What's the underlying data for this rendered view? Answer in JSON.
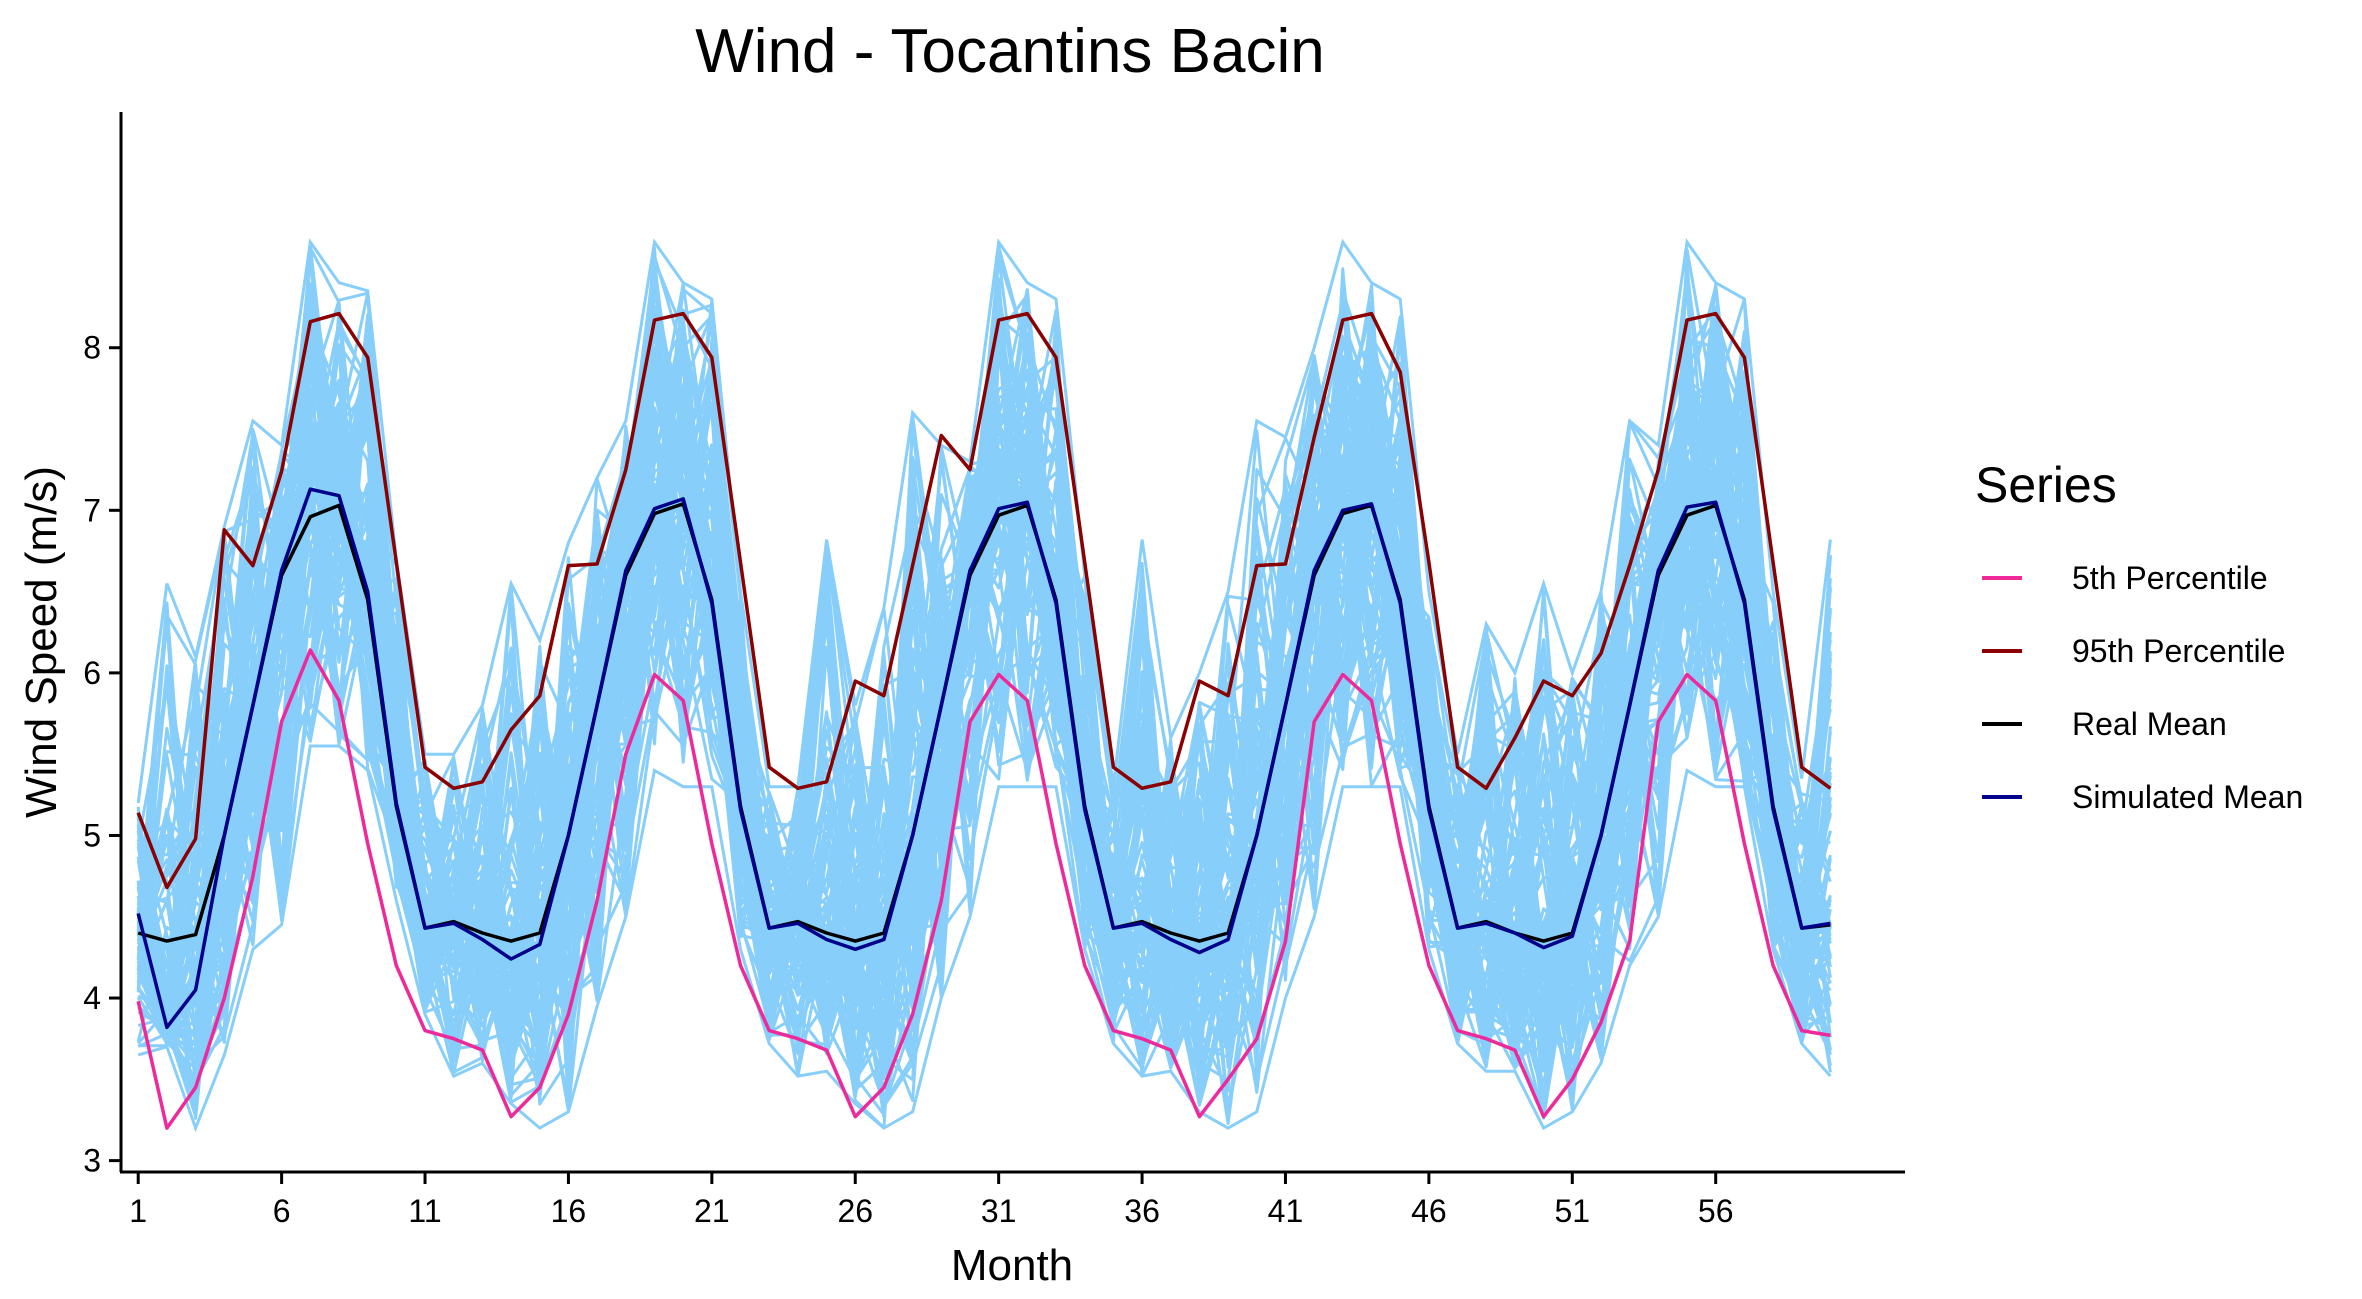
{
  "chart_data": {
    "type": "line",
    "title": "Wind - Tocantins Bacin",
    "xlabel": "Month",
    "ylabel": "Wind Speed (m/s)",
    "xlim": [
      0.4,
      62.6
    ],
    "ylim": [
      2.93,
      9.45
    ],
    "x_ticks": [
      1,
      6,
      11,
      16,
      21,
      26,
      31,
      36,
      41,
      46,
      51,
      56
    ],
    "y_ticks": [
      3,
      4,
      5,
      6,
      7,
      8
    ],
    "grid": false,
    "legend": {
      "title": "Series",
      "position": "right",
      "entries": [
        {
          "label": "5th Percentile",
          "color": "#ee2a9a"
        },
        {
          "label": "95th Percentile",
          "color": "#8b0000"
        },
        {
          "label": "Real Mean",
          "color": "#000000"
        },
        {
          "label": "Simulated Mean",
          "color": "#00008b"
        }
      ]
    },
    "simulations": {
      "color": "#87cefa",
      "count": 100,
      "upper_envelope": [
        5.2,
        6.55,
        6.1,
        6.9,
        7.55,
        7.4,
        8.65,
        8.4,
        8.35,
        6.7,
        5.5,
        5.5,
        5.8,
        6.55,
        6.2,
        6.8,
        7.2,
        7.55,
        8.65,
        8.4,
        8.3,
        6.5,
        5.3,
        5.3,
        6.82,
        5.8,
        6.4,
        7.6,
        7.4,
        7.3,
        8.65,
        8.4,
        8.3,
        6.6,
        5.3,
        6.82,
        5.6,
        6.0,
        6.5,
        7.55,
        7.45,
        8.0,
        8.65,
        8.4,
        8.3,
        6.5,
        5.5,
        6.3,
        6.0,
        6.55,
        6.0,
        6.5,
        7.55,
        7.4,
        8.65,
        8.4,
        8.3,
        6.5,
        5.35,
        6.82
      ],
      "lower_envelope": [
        3.65,
        3.7,
        3.2,
        3.65,
        4.3,
        4.45,
        5.55,
        5.55,
        5.4,
        4.6,
        3.9,
        3.52,
        3.6,
        3.35,
        3.2,
        3.3,
        3.95,
        4.5,
        5.4,
        5.3,
        5.3,
        4.3,
        3.72,
        3.52,
        3.55,
        3.35,
        3.2,
        3.3,
        4.0,
        4.5,
        5.3,
        5.3,
        5.3,
        4.3,
        3.72,
        3.52,
        3.55,
        3.3,
        3.2,
        3.3,
        4.0,
        4.5,
        5.3,
        5.3,
        5.3,
        4.3,
        3.72,
        3.55,
        3.55,
        3.2,
        3.3,
        3.6,
        4.2,
        4.5,
        5.4,
        5.3,
        5.3,
        4.3,
        3.72,
        3.52
      ]
    },
    "x": [
      1,
      2,
      3,
      4,
      5,
      6,
      7,
      8,
      9,
      10,
      11,
      12,
      13,
      14,
      15,
      16,
      17,
      18,
      19,
      20,
      21,
      22,
      23,
      24,
      25,
      26,
      27,
      28,
      29,
      30,
      31,
      32,
      33,
      34,
      35,
      36,
      37,
      38,
      39,
      40,
      41,
      42,
      43,
      44,
      45,
      46,
      47,
      48,
      49,
      50,
      51,
      52,
      53,
      54,
      55,
      56,
      57,
      58,
      59,
      60
    ],
    "series": [
      {
        "name": "5th Percentile",
        "color": "#ee2a9a",
        "values": [
          3.98,
          3.2,
          3.45,
          4.0,
          4.75,
          5.7,
          6.14,
          5.83,
          4.95,
          4.2,
          3.8,
          3.75,
          3.68,
          3.27,
          3.45,
          3.9,
          4.6,
          5.5,
          5.99,
          5.83,
          4.95,
          4.2,
          3.8,
          3.75,
          3.68,
          3.27,
          3.45,
          3.9,
          4.6,
          5.7,
          5.99,
          5.83,
          4.95,
          4.2,
          3.8,
          3.75,
          3.68,
          3.27,
          3.5,
          3.75,
          4.35,
          5.7,
          5.99,
          5.83,
          4.95,
          4.2,
          3.8,
          3.75,
          3.68,
          3.27,
          3.5,
          3.85,
          4.35,
          5.7,
          5.99,
          5.83,
          4.95,
          4.2,
          3.8,
          3.77
        ]
      },
      {
        "name": "95th Percentile",
        "color": "#8b0000",
        "values": [
          5.14,
          4.68,
          4.98,
          6.88,
          6.66,
          7.24,
          8.16,
          8.21,
          7.94,
          6.68,
          5.42,
          5.29,
          5.33,
          5.65,
          5.86,
          6.66,
          6.67,
          7.25,
          8.17,
          8.21,
          7.94,
          6.68,
          5.42,
          5.29,
          5.33,
          5.95,
          5.86,
          6.66,
          7.46,
          7.25,
          8.17,
          8.21,
          7.94,
          6.68,
          5.42,
          5.29,
          5.33,
          5.95,
          5.86,
          6.66,
          6.67,
          7.45,
          8.17,
          8.21,
          7.85,
          6.68,
          5.42,
          5.29,
          5.6,
          5.95,
          5.86,
          6.12,
          6.66,
          7.25,
          8.17,
          8.21,
          7.94,
          6.68,
          5.42,
          5.29
        ]
      },
      {
        "name": "Real Mean",
        "color": "#000000",
        "values": [
          4.4,
          4.35,
          4.39,
          5.0,
          5.8,
          6.6,
          6.96,
          7.03,
          6.45,
          5.18,
          4.43,
          4.47,
          4.4,
          4.35,
          4.4,
          5.0,
          5.8,
          6.6,
          6.98,
          7.04,
          6.45,
          5.18,
          4.43,
          4.47,
          4.4,
          4.35,
          4.4,
          5.0,
          5.8,
          6.6,
          6.97,
          7.03,
          6.45,
          5.18,
          4.43,
          4.47,
          4.4,
          4.35,
          4.4,
          5.0,
          5.8,
          6.6,
          6.98,
          7.03,
          6.45,
          5.18,
          4.43,
          4.47,
          4.4,
          4.35,
          4.4,
          5.0,
          5.8,
          6.6,
          6.97,
          7.03,
          6.45,
          5.18,
          4.43,
          4.45
        ]
      },
      {
        "name": "Simulated Mean",
        "color": "#00008b",
        "values": [
          4.52,
          3.82,
          4.05,
          5.0,
          5.8,
          6.63,
          7.13,
          7.09,
          6.5,
          5.2,
          4.43,
          4.46,
          4.36,
          4.24,
          4.33,
          5.0,
          5.8,
          6.63,
          7.01,
          7.07,
          6.43,
          5.16,
          4.43,
          4.46,
          4.36,
          4.3,
          4.36,
          5.0,
          5.8,
          6.63,
          7.01,
          7.05,
          6.43,
          5.16,
          4.43,
          4.46,
          4.36,
          4.28,
          4.36,
          5.0,
          5.8,
          6.63,
          7.0,
          7.04,
          6.43,
          5.16,
          4.43,
          4.46,
          4.4,
          4.31,
          4.38,
          5.0,
          5.8,
          6.63,
          7.02,
          7.05,
          6.43,
          5.16,
          4.43,
          4.46
        ]
      }
    ]
  }
}
